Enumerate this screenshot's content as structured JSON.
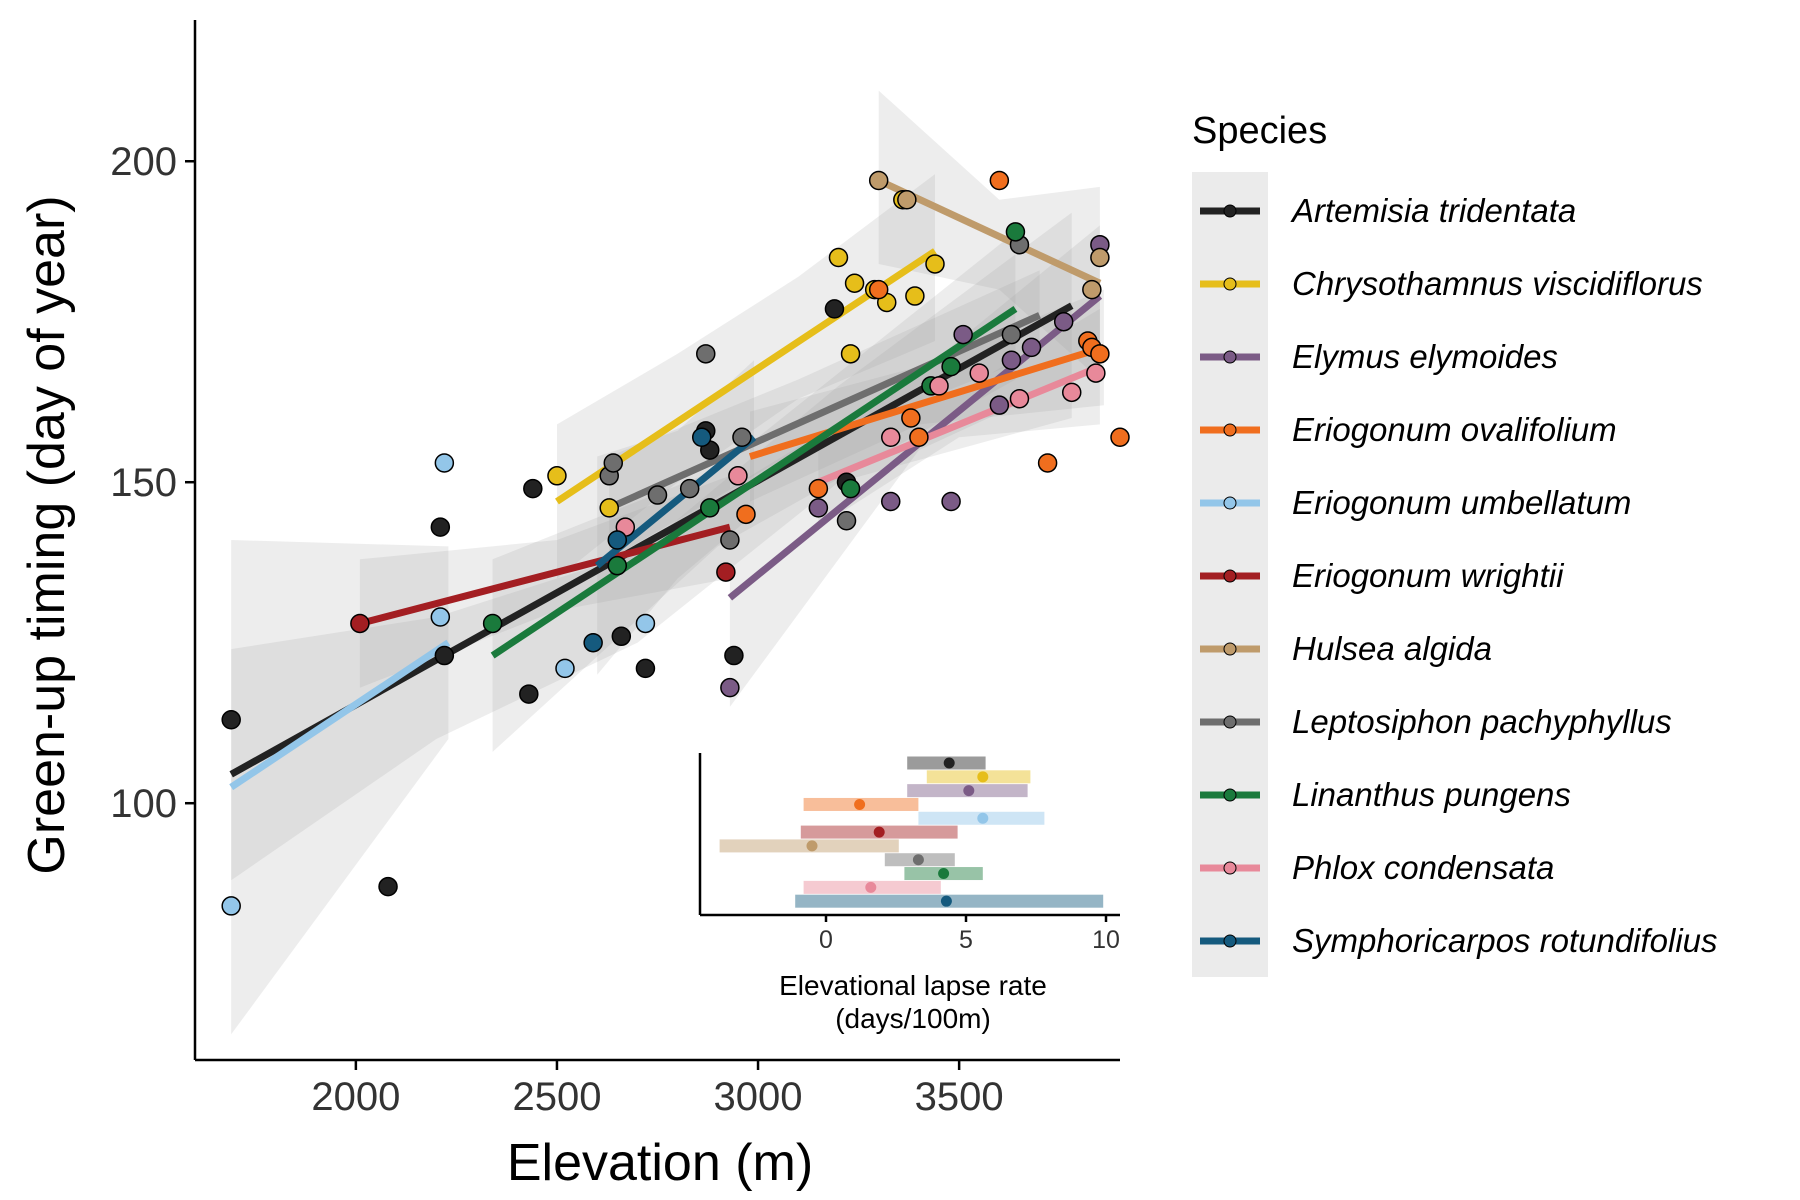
{
  "chart_data": [
    {
      "type": "scatter",
      "xlabel": "Elevation (m)",
      "ylabel": "Green-up timing (day of year)",
      "xlim": [
        1600,
        3900
      ],
      "ylim": [
        60,
        222
      ],
      "xticks": [
        2000,
        2500,
        3000,
        3500
      ],
      "yticks": [
        100,
        150,
        200
      ],
      "grid": false,
      "legend": {
        "title": "Species",
        "position": "right"
      },
      "series": [
        {
          "name": "Artemisia tridentata",
          "color": "#222222",
          "fit": {
            "x": [
              1690,
              3780
            ],
            "y": [
              104.5,
              177.5
            ]
          },
          "band": {
            "x": [
              1690,
              2200,
              2700,
              3200,
              3780
            ],
            "lo": [
              88,
              110,
              125,
              150,
              160
            ],
            "hi": [
              124,
              129,
              139,
              165,
              192
            ]
          },
          "points": [
            [
              1690,
              113
            ],
            [
              2080,
              87
            ],
            [
              2210,
              143
            ],
            [
              2220,
              123
            ],
            [
              2430,
              117
            ],
            [
              2440,
              149
            ],
            [
              2660,
              126
            ],
            [
              2720,
              121
            ],
            [
              2870,
              158
            ],
            [
              2880,
              155
            ],
            [
              2940,
              123
            ],
            [
              3190,
              177
            ],
            [
              3220,
              150
            ]
          ]
        },
        {
          "name": "Chrysothamnus viscidiflorus",
          "color": "#E6BE1A",
          "fit": {
            "x": [
              2500,
              3440
            ],
            "y": [
              147,
              186
            ]
          },
          "band": {
            "x": [
              2500,
              2800,
              3100,
              3440
            ],
            "lo": [
              135,
              150,
              163,
              172
            ],
            "hi": [
              159,
              170,
              182,
              198
            ]
          },
          "points": [
            [
              2500,
              151
            ],
            [
              2630,
              146
            ],
            [
              3200,
              185
            ],
            [
              3230,
              170
            ],
            [
              3240,
              181
            ],
            [
              3290,
              180
            ],
            [
              3320,
              178
            ],
            [
              3360,
              194
            ],
            [
              3390,
              179
            ],
            [
              3440,
              184
            ]
          ]
        },
        {
          "name": "Elymus elymoides",
          "color": "#7B5B86",
          "fit": {
            "x": [
              2930,
              3850
            ],
            "y": [
              132,
              179
            ]
          },
          "band": {
            "x": [
              2930,
              3400,
              3850
            ],
            "lo": [
              115,
              155,
              168
            ],
            "hi": [
              149,
              167,
              190
            ]
          },
          "points": [
            [
              2930,
              118
            ],
            [
              3150,
              146
            ],
            [
              3330,
              147
            ],
            [
              3480,
              147
            ],
            [
              3510,
              173
            ],
            [
              3600,
              162
            ],
            [
              3630,
              169
            ],
            [
              3680,
              171
            ],
            [
              3760,
              175
            ],
            [
              3850,
              187
            ]
          ]
        },
        {
          "name": "Eriogonum ovalifolium",
          "color": "#F06E1E",
          "fit": {
            "x": [
              2980,
              3860
            ],
            "y": [
              154,
              171
            ]
          },
          "band": {
            "x": [
              2980,
              3400,
              3860
            ],
            "lo": [
              147,
              159,
              162
            ],
            "hi": [
              161,
              168,
              180
            ]
          },
          "points": [
            [
              2970,
              145
            ],
            [
              3150,
              149
            ],
            [
              3300,
              180
            ],
            [
              3380,
              160
            ],
            [
              3400,
              157
            ],
            [
              3600,
              197
            ],
            [
              3720,
              153
            ],
            [
              3820,
              172
            ],
            [
              3830,
              171
            ],
            [
              3850,
              170
            ],
            [
              3900,
              157
            ]
          ]
        },
        {
          "name": "Eriogonum umbellatum",
          "color": "#93C6E9",
          "fit": {
            "x": [
              1690,
              2230
            ],
            "y": [
              102.5,
              125
            ]
          },
          "band": {
            "x": [
              1690,
              2230
            ],
            "lo": [
              64,
              110
            ],
            "hi": [
              141,
              140
            ]
          },
          "points": [
            [
              1690,
              84
            ],
            [
              2210,
              129
            ],
            [
              2220,
              153
            ],
            [
              2520,
              121
            ],
            [
              2720,
              128
            ]
          ]
        },
        {
          "name": "Eriogonum wrightii",
          "color": "#A31E22",
          "fit": {
            "x": [
              2010,
              2930
            ],
            "y": [
              128,
              143
            ]
          },
          "band": {
            "x": [
              2010,
              2500,
              2930
            ],
            "lo": [
              118,
              130,
              135
            ],
            "hi": [
              138,
              141,
              151
            ]
          },
          "points": [
            [
              2010,
              128
            ],
            [
              2920,
              136
            ]
          ]
        },
        {
          "name": "Hulsea algida",
          "color": "#BF9B6B",
          "fit": {
            "x": [
              3300,
              3850
            ],
            "y": [
              197,
              181
            ]
          },
          "band": {
            "x": [
              3300,
              3600,
              3850
            ],
            "lo": [
              184,
              180,
              166
            ],
            "hi": [
              211,
              194,
              196
            ]
          },
          "points": [
            [
              3300,
              197
            ],
            [
              3370,
              194
            ],
            [
              3830,
              180
            ],
            [
              3850,
              185
            ]
          ]
        },
        {
          "name": "Leptosiphon pachyphyllus",
          "color": "#6E6E6E",
          "fit": {
            "x": [
              2630,
              3700
            ],
            "y": [
              146,
              176
            ]
          },
          "band": {
            "x": [
              2630,
              3100,
              3700
            ],
            "lo": [
              138,
              155,
              170
            ],
            "hi": [
              154,
              166,
              183
            ]
          },
          "points": [
            [
              2630,
              151
            ],
            [
              2640,
              153
            ],
            [
              2750,
              148
            ],
            [
              2830,
              149
            ],
            [
              2870,
              170
            ],
            [
              2930,
              141
            ],
            [
              2960,
              157
            ],
            [
              3220,
              144
            ],
            [
              3630,
              173
            ],
            [
              3650,
              187
            ]
          ]
        },
        {
          "name": "Linanthus pungens",
          "color": "#1A7A3C",
          "fit": {
            "x": [
              2340,
              3640
            ],
            "y": [
              123,
              177
            ]
          },
          "band": {
            "x": [
              2340,
              2900,
              3640
            ],
            "lo": [
              108,
              140,
              166
            ],
            "hi": [
              138,
              152,
              189
            ]
          },
          "points": [
            [
              2340,
              128
            ],
            [
              2650,
              137
            ],
            [
              2880,
              146
            ],
            [
              3230,
              149
            ],
            [
              3430,
              165
            ],
            [
              3480,
              168
            ],
            [
              3640,
              189
            ]
          ]
        },
        {
          "name": "Phlox condensata",
          "color": "#E8899A",
          "fit": {
            "x": [
              3150,
              3850
            ],
            "y": [
              150,
              168
            ]
          },
          "band": {
            "x": [
              3150,
              3500,
              3850
            ],
            "lo": [
              143,
              157,
              159
            ],
            "hi": [
              157,
              164,
              177
            ]
          },
          "points": [
            [
              2670,
              143
            ],
            [
              2950,
              151
            ],
            [
              3330,
              157
            ],
            [
              3450,
              165
            ],
            [
              3550,
              167
            ],
            [
              3650,
              163
            ],
            [
              3780,
              164
            ],
            [
              3840,
              167
            ]
          ]
        },
        {
          "name": "Symphoricarpos rotundifolius",
          "color": "#155A7E",
          "fit": {
            "x": [
              2600,
              2990
            ],
            "y": [
              137,
              157
            ]
          },
          "band": {
            "x": [
              2600,
              2800,
              2990
            ],
            "lo": [
              120,
              135,
              145
            ],
            "hi": [
              154,
              158,
              169
            ]
          },
          "points": [
            [
              2590,
              125
            ],
            [
              2650,
              141
            ],
            [
              2860,
              157
            ]
          ]
        }
      ]
    },
    {
      "type": "interval",
      "xlabel": "Elevational lapse rate\n(days/100m)",
      "xlim": [
        -4.5,
        10.5
      ],
      "xticks": [
        0,
        5,
        10
      ],
      "series": [
        {
          "name": "Artemisia tridentata",
          "estimate": 4.4,
          "lo": 2.9,
          "hi": 5.7
        },
        {
          "name": "Chrysothamnus viscidiflorus",
          "estimate": 5.6,
          "lo": 3.6,
          "hi": 7.3
        },
        {
          "name": "Elymus elymoides",
          "estimate": 5.1,
          "lo": 2.9,
          "hi": 7.2
        },
        {
          "name": "Eriogonum ovalifolium",
          "estimate": 1.2,
          "lo": -0.8,
          "hi": 3.3
        },
        {
          "name": "Eriogonum umbellatum",
          "estimate": 5.6,
          "lo": 3.3,
          "hi": 7.8
        },
        {
          "name": "Eriogonum wrightii",
          "estimate": 1.9,
          "lo": -0.9,
          "hi": 4.7
        },
        {
          "name": "Hulsea algida",
          "estimate": -0.5,
          "lo": -3.8,
          "hi": 2.6
        },
        {
          "name": "Leptosiphon pachyphyllus",
          "estimate": 3.3,
          "lo": 2.1,
          "hi": 4.6
        },
        {
          "name": "Linanthus pungens",
          "estimate": 4.2,
          "lo": 2.8,
          "hi": 5.6
        },
        {
          "name": "Phlox condensata",
          "estimate": 1.6,
          "lo": -0.8,
          "hi": 4.1
        },
        {
          "name": "Symphoricarpos rotundifolius",
          "estimate": 4.3,
          "lo": -1.1,
          "hi": 9.9
        }
      ]
    }
  ]
}
